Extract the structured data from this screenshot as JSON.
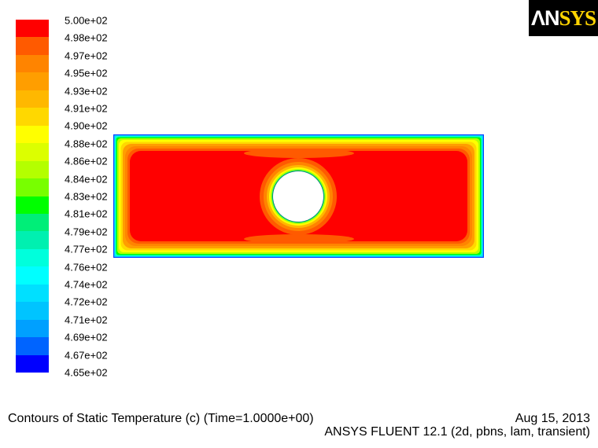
{
  "logo": {
    "text": "ANSYS"
  },
  "chart_data": {
    "type": "heatmap",
    "title": "Contours of Static Temperature (c)  (Time=1.0000e+00)",
    "date": "Aug 15, 2013",
    "solver_info": "ANSYS FLUENT 12.1 (2d, pbns, lam, transient)",
    "colorbar": {
      "labels": [
        "5.00e+02",
        "4.98e+02",
        "4.97e+02",
        "4.95e+02",
        "4.93e+02",
        "4.91e+02",
        "4.90e+02",
        "4.88e+02",
        "4.86e+02",
        "4.84e+02",
        "4.83e+02",
        "4.81e+02",
        "4.79e+02",
        "4.77e+02",
        "4.76e+02",
        "4.74e+02",
        "4.72e+02",
        "4.71e+02",
        "4.69e+02",
        "4.67e+02",
        "4.65e+02"
      ],
      "colors": [
        "#ff0000",
        "#ff5a00",
        "#ff8400",
        "#ff9e00",
        "#ffb800",
        "#ffd800",
        "#ffff00",
        "#dcff00",
        "#b4ff00",
        "#78ff00",
        "#00ff00",
        "#00ee78",
        "#00f0b0",
        "#00ffdc",
        "#00ffff",
        "#00e0ff",
        "#00c4ff",
        "#00a0ff",
        "#0064ff",
        "#0000ff"
      ],
      "range": [
        465,
        500
      ],
      "position": "left"
    },
    "field": {
      "domain": "rectangle with circular hole at center",
      "interior_value": 500,
      "boundary_value": 465
    }
  }
}
